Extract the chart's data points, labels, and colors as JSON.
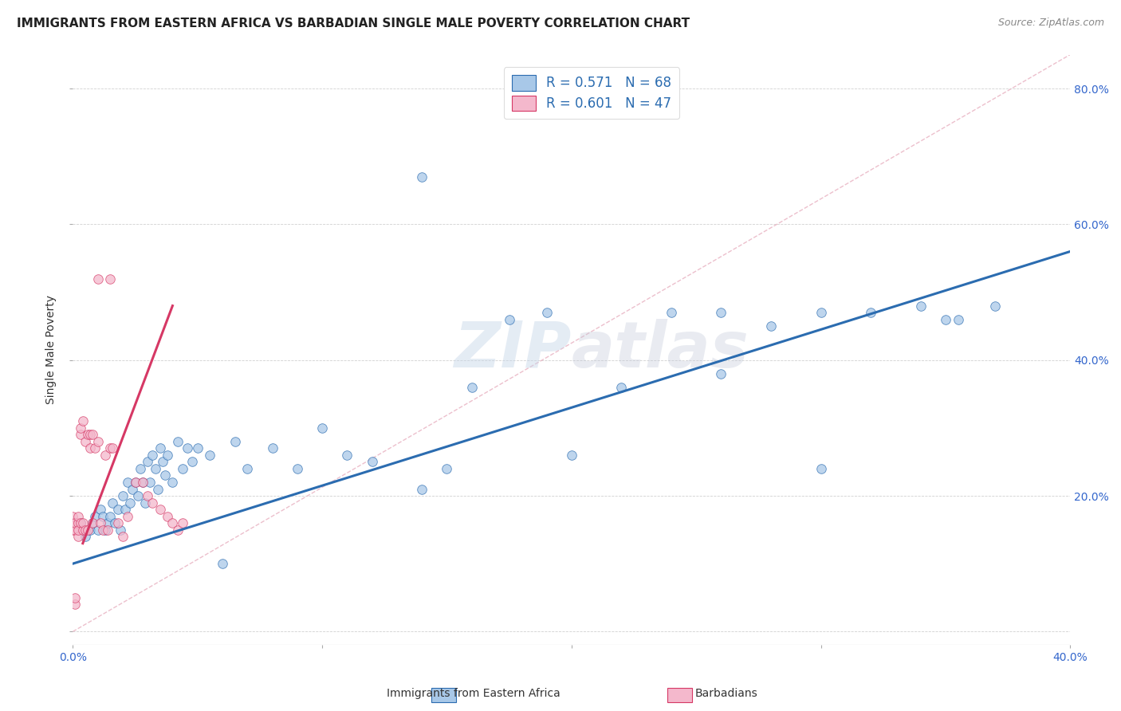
{
  "title": "IMMIGRANTS FROM EASTERN AFRICA VS BARBADIAN SINGLE MALE POVERTY CORRELATION CHART",
  "source": "Source: ZipAtlas.com",
  "ylabel": "Single Male Poverty",
  "xlim": [
    0.0,
    0.4
  ],
  "ylim": [
    -0.02,
    0.85
  ],
  "blue_R": 0.571,
  "blue_N": 68,
  "pink_R": 0.601,
  "pink_N": 47,
  "blue_color": "#a8c8e8",
  "pink_color": "#f4b8cc",
  "line_blue": "#2b6cb0",
  "line_pink": "#d63865",
  "line_diag_color": "#e8b0c0",
  "watermark": "ZIPatlas",
  "title_fontsize": 11,
  "source_fontsize": 9,
  "legend_fontsize": 12,
  "axis_label_fontsize": 10,
  "blue_scatter_x": [
    0.003,
    0.005,
    0.007,
    0.008,
    0.009,
    0.01,
    0.011,
    0.012,
    0.013,
    0.014,
    0.015,
    0.016,
    0.017,
    0.018,
    0.019,
    0.02,
    0.021,
    0.022,
    0.023,
    0.024,
    0.025,
    0.026,
    0.027,
    0.028,
    0.029,
    0.03,
    0.031,
    0.032,
    0.033,
    0.034,
    0.035,
    0.036,
    0.037,
    0.038,
    0.04,
    0.042,
    0.044,
    0.046,
    0.048,
    0.05,
    0.055,
    0.06,
    0.065,
    0.07,
    0.08,
    0.09,
    0.1,
    0.11,
    0.12,
    0.14,
    0.15,
    0.16,
    0.175,
    0.19,
    0.2,
    0.22,
    0.24,
    0.26,
    0.28,
    0.3,
    0.32,
    0.34,
    0.355,
    0.37,
    0.14,
    0.26,
    0.3,
    0.35
  ],
  "blue_scatter_y": [
    0.16,
    0.14,
    0.15,
    0.16,
    0.17,
    0.15,
    0.18,
    0.17,
    0.15,
    0.16,
    0.17,
    0.19,
    0.16,
    0.18,
    0.15,
    0.2,
    0.18,
    0.22,
    0.19,
    0.21,
    0.22,
    0.2,
    0.24,
    0.22,
    0.19,
    0.25,
    0.22,
    0.26,
    0.24,
    0.21,
    0.27,
    0.25,
    0.23,
    0.26,
    0.22,
    0.28,
    0.24,
    0.27,
    0.25,
    0.27,
    0.26,
    0.1,
    0.28,
    0.24,
    0.27,
    0.24,
    0.3,
    0.26,
    0.25,
    0.21,
    0.24,
    0.36,
    0.46,
    0.47,
    0.26,
    0.36,
    0.47,
    0.47,
    0.45,
    0.47,
    0.47,
    0.48,
    0.46,
    0.48,
    0.67,
    0.38,
    0.24,
    0.46
  ],
  "pink_scatter_x": [
    0.0,
    0.0,
    0.0,
    0.001,
    0.001,
    0.001,
    0.001,
    0.002,
    0.002,
    0.002,
    0.002,
    0.003,
    0.003,
    0.003,
    0.004,
    0.004,
    0.004,
    0.005,
    0.005,
    0.006,
    0.006,
    0.007,
    0.007,
    0.008,
    0.008,
    0.009,
    0.01,
    0.011,
    0.012,
    0.013,
    0.014,
    0.015,
    0.016,
    0.018,
    0.02,
    0.022,
    0.025,
    0.028,
    0.03,
    0.032,
    0.035,
    0.038,
    0.04,
    0.042,
    0.044,
    0.01,
    0.015
  ],
  "pink_scatter_y": [
    0.15,
    0.16,
    0.17,
    0.15,
    0.16,
    0.04,
    0.05,
    0.14,
    0.16,
    0.15,
    0.17,
    0.16,
    0.29,
    0.3,
    0.15,
    0.16,
    0.31,
    0.15,
    0.28,
    0.15,
    0.29,
    0.27,
    0.29,
    0.16,
    0.29,
    0.27,
    0.28,
    0.16,
    0.15,
    0.26,
    0.15,
    0.27,
    0.27,
    0.16,
    0.14,
    0.17,
    0.22,
    0.22,
    0.2,
    0.19,
    0.18,
    0.17,
    0.16,
    0.15,
    0.16,
    0.52,
    0.52
  ],
  "blue_line_x0": 0.0,
  "blue_line_y0": 0.1,
  "blue_line_x1": 0.4,
  "blue_line_y1": 0.56,
  "pink_line_x0": 0.004,
  "pink_line_y0": 0.13,
  "pink_line_x1": 0.04,
  "pink_line_y1": 0.48,
  "diag_line_x0": 0.0,
  "diag_line_y0": 0.0,
  "diag_line_x1": 0.4,
  "diag_line_y1": 0.85
}
